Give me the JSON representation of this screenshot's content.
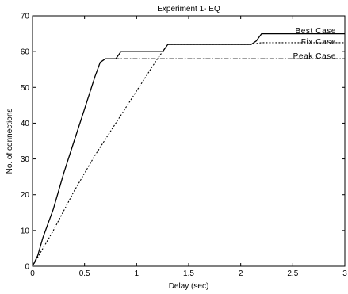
{
  "chart_data": {
    "type": "line",
    "title": "Experiment 1- EQ",
    "xlabel": "Delay (sec)",
    "ylabel": "No. of connections",
    "xlim": [
      0,
      3
    ],
    "ylim": [
      0,
      70
    ],
    "xticks": [
      0,
      0.5,
      1,
      1.5,
      2,
      2.5,
      3
    ],
    "xtick_labels": [
      "0",
      "0.5",
      "1",
      "1.5",
      "2",
      "2.5",
      "3"
    ],
    "yticks": [
      0,
      10,
      20,
      30,
      40,
      50,
      60,
      70
    ],
    "ytick_labels": [
      "0",
      "10",
      "20",
      "30",
      "40",
      "50",
      "60",
      "70"
    ],
    "grid": false,
    "legend_position": "top-right",
    "series": [
      {
        "name": "Best Case",
        "style": "solid",
        "color": "#000000",
        "x": [
          0,
          0.05,
          0.1,
          0.2,
          0.3,
          0.4,
          0.5,
          0.6,
          0.65,
          0.7,
          0.8,
          0.85,
          0.9,
          1.05,
          1.25,
          1.3,
          1.35,
          2.1,
          2.15,
          2.2,
          3.0
        ],
        "y": [
          0,
          3,
          8,
          16,
          26,
          35,
          44,
          53,
          57,
          58,
          58,
          60,
          60,
          60,
          60,
          62,
          62,
          62,
          63,
          65,
          65
        ]
      },
      {
        "name": "Fix Case",
        "style": "dotted",
        "color": "#000000",
        "x": [
          0,
          0.2,
          0.4,
          0.6,
          0.8,
          1.0,
          1.2,
          1.3,
          1.35,
          2.1,
          2.2,
          3.0
        ],
        "y": [
          0,
          10,
          21,
          31,
          40,
          49,
          58,
          62,
          62,
          62,
          62.5,
          62.5
        ]
      },
      {
        "name": "Peak Case",
        "style": "dashdot",
        "color": "#000000",
        "x": [
          0.7,
          3.0
        ],
        "y": [
          58,
          58
        ]
      }
    ]
  }
}
